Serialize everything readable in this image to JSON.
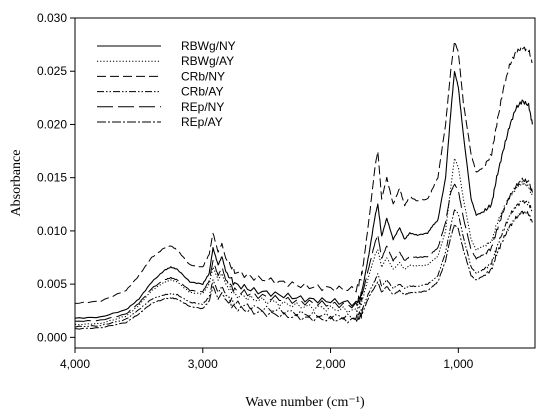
{
  "chart_data": {
    "type": "line",
    "title": "",
    "xlabel": "Wave number (cm⁻¹)",
    "ylabel": "Absorbance",
    "xlim": [
      4000,
      400
    ],
    "ylim": [
      -0.001,
      0.03
    ],
    "x_reversed": true,
    "grid": false,
    "legend_position": "top-left",
    "xticks": [
      4000,
      3000,
      2000,
      1000
    ],
    "xtick_labels": [
      "4,000",
      "3,000",
      "2,000",
      "1,000"
    ],
    "yticks": [
      0.0,
      0.005,
      0.01,
      0.015,
      0.02,
      0.025,
      0.03
    ],
    "ytick_labels": [
      "0.000",
      "0.005",
      "0.010",
      "0.015",
      "0.020",
      "0.025",
      "0.030"
    ],
    "x": [
      4000,
      3800,
      3600,
      3500,
      3400,
      3300,
      3250,
      3200,
      3100,
      3000,
      2950,
      2920,
      2880,
      2850,
      2820,
      2750,
      2600,
      2400,
      2200,
      2000,
      1800,
      1760,
      1740,
      1700,
      1650,
      1630,
      1600,
      1560,
      1510,
      1460,
      1420,
      1380,
      1320,
      1240,
      1200,
      1160,
      1100,
      1060,
      1030,
      1000,
      960,
      900,
      860,
      800,
      740,
      700,
      650,
      600,
      550,
      500,
      450,
      420
    ],
    "series": [
      {
        "name": "RBWg/NY",
        "dash": "",
        "values": [
          0.0018,
          0.0019,
          0.0026,
          0.0036,
          0.0052,
          0.0063,
          0.0066,
          0.0064,
          0.0052,
          0.005,
          0.006,
          0.0084,
          0.0068,
          0.0076,
          0.0062,
          0.005,
          0.0044,
          0.004,
          0.0036,
          0.0034,
          0.0032,
          0.004,
          0.0052,
          0.0078,
          0.0115,
          0.0125,
          0.0095,
          0.0112,
          0.0092,
          0.0103,
          0.0092,
          0.0098,
          0.0096,
          0.0098,
          0.0105,
          0.011,
          0.015,
          0.021,
          0.025,
          0.0235,
          0.019,
          0.013,
          0.0115,
          0.0118,
          0.0125,
          0.015,
          0.0175,
          0.0198,
          0.0215,
          0.0222,
          0.0218,
          0.02
        ]
      },
      {
        "name": "RBWg/AY",
        "dash": "1.2 2",
        "values": [
          0.0012,
          0.0013,
          0.002,
          0.003,
          0.0044,
          0.0052,
          0.0054,
          0.0052,
          0.0042,
          0.0041,
          0.005,
          0.0066,
          0.0054,
          0.006,
          0.005,
          0.004,
          0.0036,
          0.0032,
          0.0029,
          0.0027,
          0.0025,
          0.0031,
          0.004,
          0.0058,
          0.0078,
          0.0082,
          0.0066,
          0.0075,
          0.0064,
          0.007,
          0.0064,
          0.0068,
          0.0067,
          0.0068,
          0.0072,
          0.0076,
          0.01,
          0.014,
          0.0168,
          0.016,
          0.013,
          0.0092,
          0.0082,
          0.0086,
          0.009,
          0.0106,
          0.012,
          0.0132,
          0.014,
          0.0145,
          0.0142,
          0.0132
        ]
      },
      {
        "name": "CRb/NY",
        "dash": "9 4",
        "values": [
          0.0032,
          0.0034,
          0.0044,
          0.0058,
          0.0075,
          0.0084,
          0.0086,
          0.0082,
          0.0068,
          0.0066,
          0.0078,
          0.0098,
          0.008,
          0.0088,
          0.0074,
          0.0062,
          0.0056,
          0.0052,
          0.0048,
          0.0046,
          0.0045,
          0.0056,
          0.0072,
          0.011,
          0.0162,
          0.0175,
          0.013,
          0.015,
          0.0125,
          0.014,
          0.0124,
          0.0132,
          0.0128,
          0.013,
          0.014,
          0.015,
          0.02,
          0.025,
          0.0278,
          0.0268,
          0.022,
          0.0172,
          0.0155,
          0.016,
          0.0172,
          0.02,
          0.0232,
          0.0255,
          0.0268,
          0.0272,
          0.027,
          0.0258
        ]
      },
      {
        "name": "CRb/AY",
        "dash": "7 2 1.5 2 1.5 2",
        "values": [
          0.001,
          0.0011,
          0.0017,
          0.0026,
          0.0036,
          0.004,
          0.0041,
          0.004,
          0.0033,
          0.0031,
          0.0038,
          0.0054,
          0.0042,
          0.0048,
          0.004,
          0.0032,
          0.0028,
          0.0025,
          0.0022,
          0.002,
          0.0019,
          0.0024,
          0.003,
          0.0042,
          0.0054,
          0.006,
          0.0048,
          0.0054,
          0.0046,
          0.005,
          0.0046,
          0.0048,
          0.0048,
          0.005,
          0.0054,
          0.0058,
          0.008,
          0.0104,
          0.012,
          0.0116,
          0.0094,
          0.0066,
          0.006,
          0.0064,
          0.007,
          0.0084,
          0.01,
          0.0114,
          0.0123,
          0.0128,
          0.0126,
          0.0118
        ]
      },
      {
        "name": "REp/NY",
        "dash": "16 5",
        "values": [
          0.0015,
          0.0016,
          0.0022,
          0.0032,
          0.0046,
          0.0054,
          0.0056,
          0.0054,
          0.0044,
          0.0043,
          0.0053,
          0.0072,
          0.0058,
          0.0066,
          0.0054,
          0.0044,
          0.004,
          0.0036,
          0.0033,
          0.0031,
          0.003,
          0.0036,
          0.0046,
          0.0066,
          0.009,
          0.0096,
          0.0074,
          0.0086,
          0.0072,
          0.008,
          0.0072,
          0.0076,
          0.0075,
          0.0076,
          0.008,
          0.0084,
          0.0108,
          0.0136,
          0.0144,
          0.0138,
          0.0112,
          0.0082,
          0.0074,
          0.0078,
          0.0084,
          0.01,
          0.0118,
          0.0132,
          0.0142,
          0.0148,
          0.0146,
          0.0136
        ]
      },
      {
        "name": "REp/AY",
        "dash": "9 2 2 2",
        "values": [
          0.0008,
          0.0009,
          0.0014,
          0.0022,
          0.0032,
          0.0036,
          0.0037,
          0.0036,
          0.0029,
          0.0027,
          0.0034,
          0.0048,
          0.0036,
          0.0042,
          0.0035,
          0.0028,
          0.0024,
          0.0021,
          0.0018,
          0.0017,
          0.0016,
          0.002,
          0.0026,
          0.0038,
          0.0048,
          0.0052,
          0.0042,
          0.0048,
          0.004,
          0.0044,
          0.004,
          0.0042,
          0.0042,
          0.0044,
          0.0048,
          0.0052,
          0.0072,
          0.0094,
          0.0106,
          0.0102,
          0.0082,
          0.0058,
          0.0054,
          0.0058,
          0.0064,
          0.0078,
          0.0092,
          0.0104,
          0.0112,
          0.0118,
          0.0116,
          0.0108
        ]
      }
    ]
  }
}
